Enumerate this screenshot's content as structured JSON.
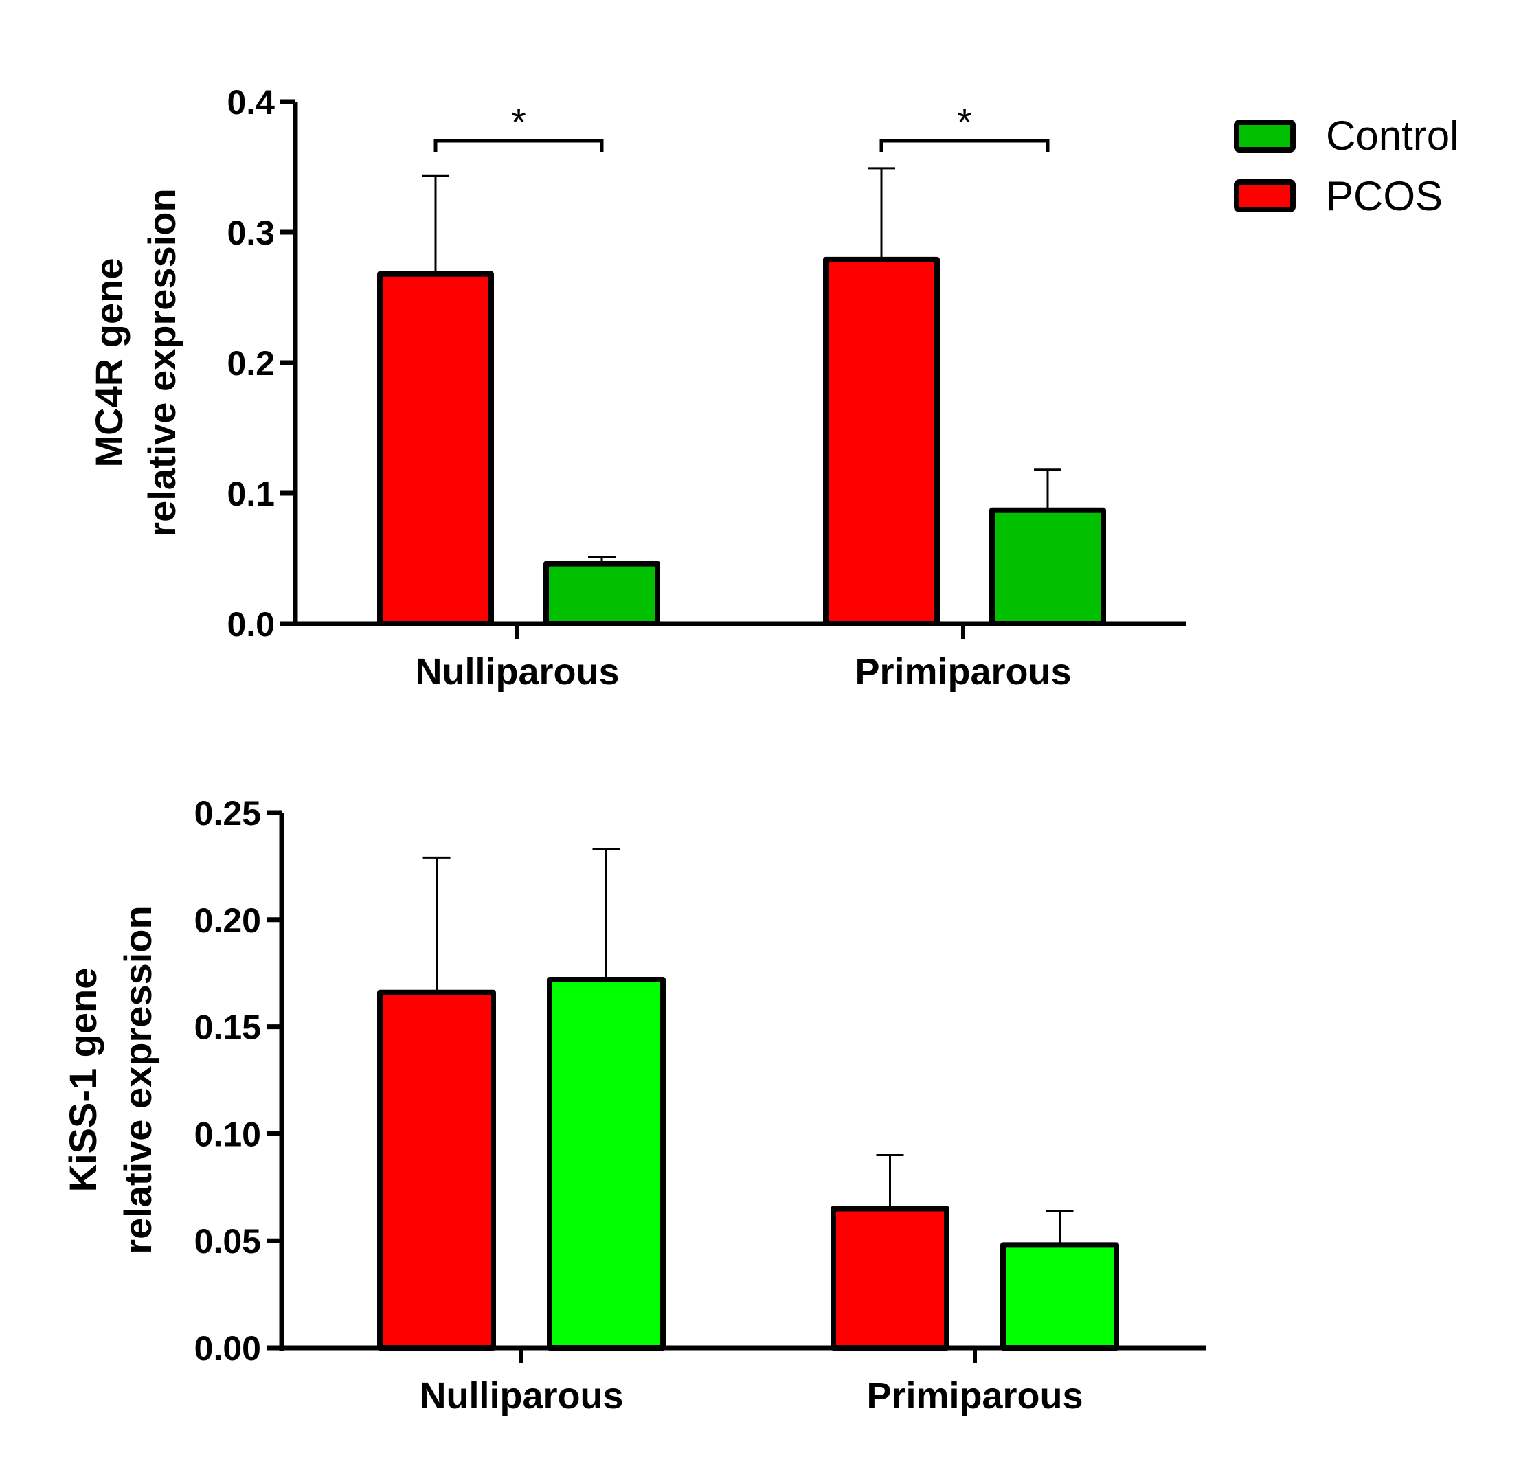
{
  "chart_data": [
    {
      "type": "bar",
      "title": "",
      "ylabel_line1": "MC4R gene",
      "ylabel_line2": "relative expression",
      "xlabel": "",
      "ylim": [
        0,
        0.4
      ],
      "yticks": [
        0.0,
        0.1,
        0.2,
        0.3,
        0.4
      ],
      "ytick_labels": [
        "0.0",
        "0.1",
        "0.2",
        "0.3",
        "0.4"
      ],
      "categories": [
        "Nulliparous",
        "Primiparous"
      ],
      "series": [
        {
          "name": "PCOS",
          "color": "#ff0000",
          "values": [
            0.268,
            0.279
          ],
          "error_upper": [
            0.343,
            0.349
          ]
        },
        {
          "name": "Control",
          "color": "#00c000",
          "values": [
            0.046,
            0.087
          ],
          "error_upper": [
            0.051,
            0.118
          ]
        }
      ],
      "significance": [
        {
          "category": "Nulliparous",
          "label": "*"
        },
        {
          "category": "Primiparous",
          "label": "*"
        }
      ],
      "grid": false
    },
    {
      "type": "bar",
      "title": "",
      "ylabel_line1": "KiSS-1 gene",
      "ylabel_line2": "relative expression",
      "xlabel": "",
      "ylim": [
        0,
        0.25
      ],
      "yticks": [
        0.0,
        0.05,
        0.1,
        0.15,
        0.2,
        0.25
      ],
      "ytick_labels": [
        "0.00",
        "0.05",
        "0.10",
        "0.15",
        "0.20",
        "0.25"
      ],
      "categories": [
        "Nulliparous",
        "Primiparous"
      ],
      "series": [
        {
          "name": "PCOS",
          "color": "#ff0000",
          "values": [
            0.166,
            0.065
          ],
          "error_upper": [
            0.229,
            0.09
          ]
        },
        {
          "name": "Control",
          "color": "#00ff00",
          "values": [
            0.172,
            0.048
          ],
          "error_upper": [
            0.233,
            0.064
          ]
        }
      ],
      "significance": [],
      "grid": false
    }
  ],
  "legend": {
    "placement": "top-right",
    "items": [
      {
        "label": "Control",
        "color": "#00c000"
      },
      {
        "label": "PCOS",
        "color": "#ff0000"
      }
    ]
  }
}
